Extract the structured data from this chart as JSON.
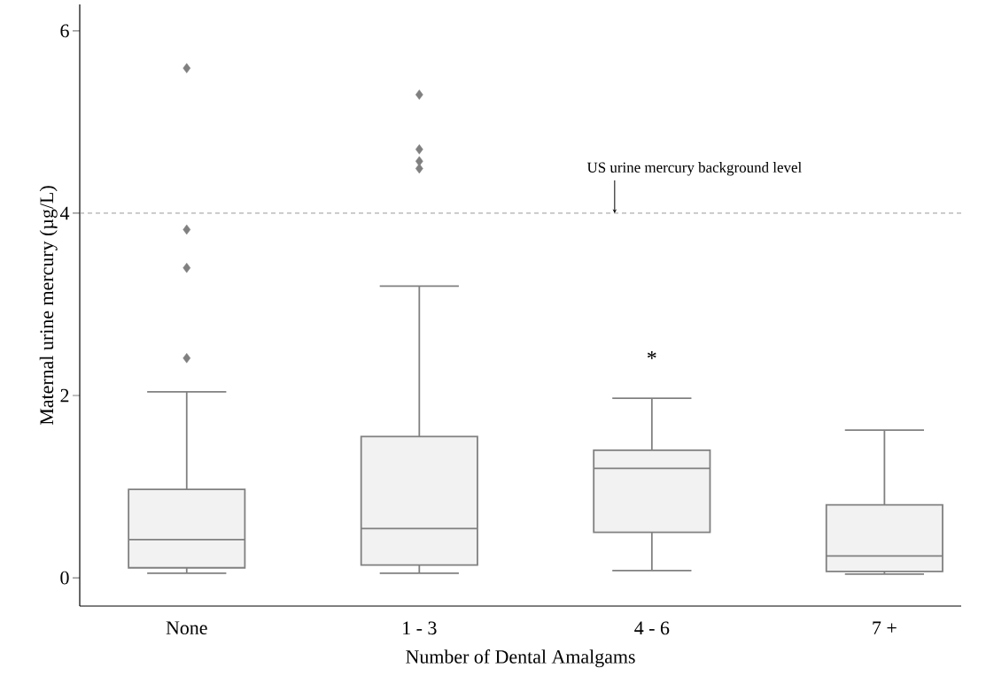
{
  "chart_data": {
    "type": "box",
    "xlabel": "Number of Dental Amalgams",
    "ylabel": "Maternal urine mercury (µg/L)",
    "categories": [
      "None",
      "1 - 3",
      "4 - 6",
      "7 +"
    ],
    "series": [
      {
        "color": "#808080",
        "boxes": [
          {
            "low": 0.05,
            "q1": 0.11,
            "median": 0.42,
            "q3": 0.97,
            "high": 2.04,
            "outliers": [
              5.59,
              3.82,
              3.4,
              2.41
            ]
          },
          {
            "low": 0.05,
            "q1": 0.14,
            "median": 0.54,
            "q3": 1.55,
            "high": 3.2,
            "outliers": [
              5.3,
              4.7,
              4.57,
              4.49
            ]
          },
          {
            "low": 0.08,
            "q1": 0.5,
            "median": 1.2,
            "q3": 1.4,
            "high": 1.97
          },
          {
            "low": 0.04,
            "q1": 0.07,
            "median": 0.24,
            "q3": 0.8,
            "high": 1.62
          }
        ]
      }
    ],
    "marker": "diamond",
    "ylim": [
      -0.31,
      6.29
    ],
    "yticks": [
      0,
      2,
      4,
      6
    ],
    "ref_lines": [
      {
        "axis": "y",
        "value": 4,
        "label": "US  urine mercury background level",
        "line_style": "dashed",
        "color": "#808080"
      }
    ],
    "annotations": [
      "*"
    ]
  }
}
